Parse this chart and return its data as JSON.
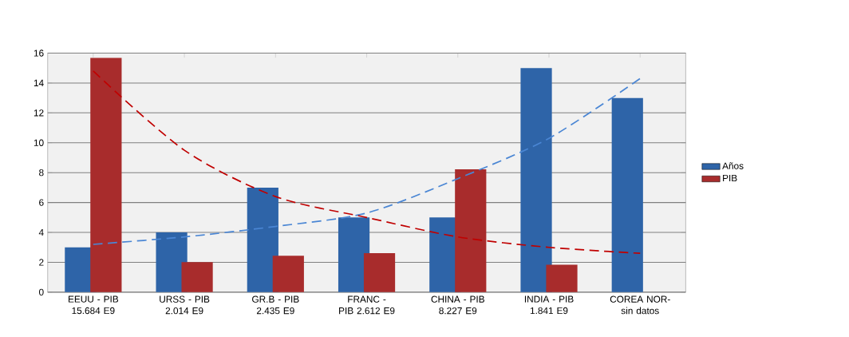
{
  "chart_data": {
    "type": "bar",
    "categories": [
      "EEUU - PIB 15.684 E9",
      "URSS - PIB 2.014 E9",
      "GR.B - PIB 2.435 E9",
      "FRANC - PIB 2.612 E9",
      "CHINA - PIB 8.227 E9",
      "INDIA - PIB 1.841 E9",
      "COREA NOR- sin datos"
    ],
    "series": [
      {
        "name": "Años",
        "color": "#2e64a8",
        "values": [
          3,
          4,
          7,
          5,
          5,
          15,
          13
        ]
      },
      {
        "name": "PIB",
        "color": "#a82c2c",
        "values": [
          15.684,
          2.014,
          2.435,
          2.612,
          8.227,
          1.841,
          null
        ]
      },
      {
        "type": "line",
        "line_style": "dashed",
        "color": "#4a86d4",
        "values": [
          3.2,
          3.7,
          4.4,
          5.3,
          7.6,
          10.3,
          14.3
        ]
      },
      {
        "type": "line",
        "line_style": "dashed",
        "color": "#c00000",
        "values": [
          14.8,
          9.5,
          6.4,
          5.0,
          3.7,
          3.0,
          2.6
        ]
      }
    ],
    "ylim": [
      0,
      16
    ],
    "yticks": [
      0,
      2,
      4,
      6,
      8,
      10,
      12,
      14,
      16
    ],
    "grid": "y",
    "legend": "right"
  }
}
